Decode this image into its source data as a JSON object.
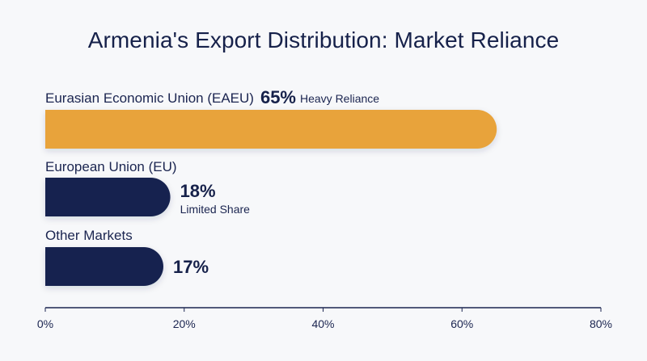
{
  "chart_data": {
    "type": "bar",
    "orientation": "horizontal",
    "title": "Armenia's Export Distribution: Market Reliance",
    "categories": [
      "Eurasian Economic Union (EAEU)",
      "European Union (EU)",
      "Other Markets"
    ],
    "values": [
      65,
      18,
      17
    ],
    "value_labels": [
      "65%",
      "18%",
      "17%"
    ],
    "annotations": [
      "Heavy Reliance",
      "Limited Share",
      ""
    ],
    "colors": [
      "#e8a33a",
      "#17244f",
      "#17244f"
    ],
    "xlim": [
      0,
      80
    ],
    "xticks": [
      0,
      20,
      40,
      60,
      80
    ],
    "xtick_labels": [
      "0%",
      "20%",
      "40%",
      "60%",
      "80%"
    ],
    "xlabel": "",
    "ylabel": "",
    "grid": false
  }
}
